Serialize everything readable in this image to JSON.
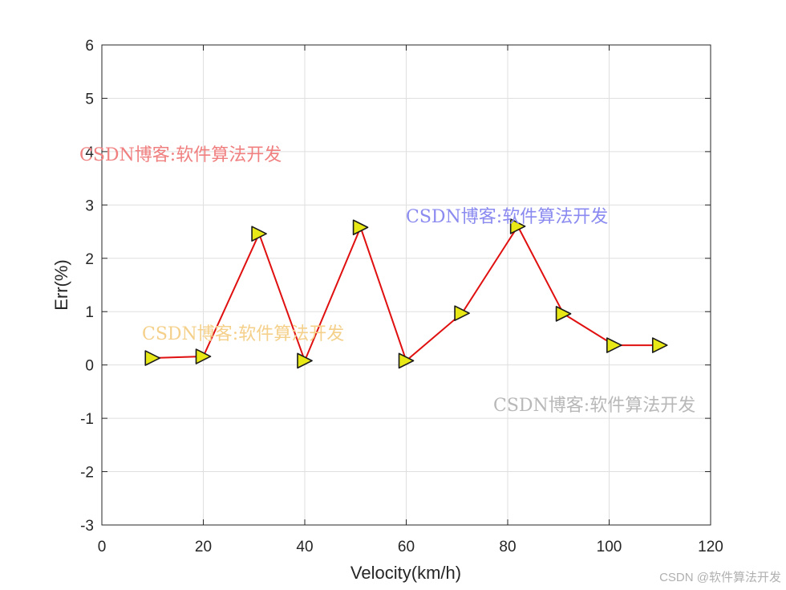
{
  "chart_data": {
    "type": "line",
    "title": "",
    "xlabel": "Velocity(km/h)",
    "ylabel": "Err(%)",
    "xlim": [
      0,
      120
    ],
    "ylim": [
      -3,
      6
    ],
    "xticks": [
      0,
      20,
      40,
      60,
      80,
      100,
      120
    ],
    "yticks": [
      -3,
      -2,
      -1,
      0,
      1,
      2,
      3,
      4,
      5,
      6
    ],
    "grid": true,
    "series": [
      {
        "x": [
          10,
          20,
          31,
          40,
          51,
          60,
          71,
          82,
          91,
          101,
          110
        ],
        "y": [
          0.13,
          0.16,
          2.46,
          0.08,
          2.58,
          0.08,
          0.97,
          2.6,
          0.96,
          0.37,
          0.37
        ],
        "line_color": "#e01010",
        "marker": "triangle-right",
        "marker_fill": "#e8e817",
        "marker_edge": "#1a1a1a"
      }
    ]
  },
  "watermarks": [
    {
      "text": "CSDN博客:软件算法开发",
      "color": "#f08080"
    },
    {
      "text": "CSDN博客:软件算法开发",
      "color": "#8a8af0"
    },
    {
      "text": "CSDN博客:软件算法开发",
      "color": "#f5d08a"
    },
    {
      "text": "CSDN博客:软件算法开发",
      "color": "#b8b8b8"
    }
  ],
  "credit": "CSDN @软件算法开发"
}
